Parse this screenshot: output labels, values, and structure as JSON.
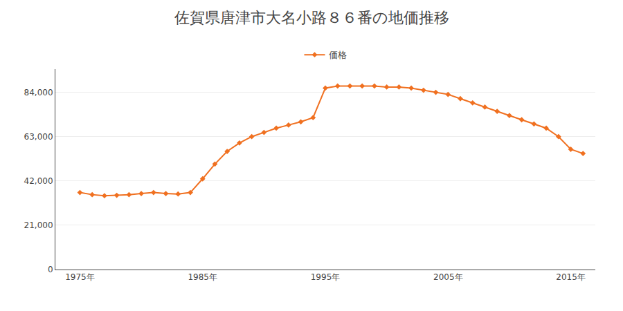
{
  "chart_data": {
    "type": "line",
    "title": "佐賀県唐津市大名小路８６番の地価推移",
    "x": [
      1975,
      1976,
      1977,
      1978,
      1979,
      1980,
      1981,
      1982,
      1983,
      1984,
      1985,
      1986,
      1987,
      1988,
      1989,
      1990,
      1991,
      1992,
      1993,
      1994,
      1995,
      1996,
      1997,
      1998,
      1999,
      2000,
      2001,
      2002,
      2003,
      2004,
      2005,
      2006,
      2007,
      2008,
      2009,
      2010,
      2011,
      2012,
      2013,
      2014,
      2015,
      2016
    ],
    "series": [
      {
        "name": "価格",
        "color": "#f07020",
        "marker": "diamond",
        "line_style": "solid",
        "values": [
          36500,
          35500,
          35000,
          35200,
          35500,
          36000,
          36500,
          36000,
          35800,
          36500,
          43000,
          50000,
          56000,
          60000,
          63000,
          65000,
          67000,
          68500,
          70000,
          72000,
          86000,
          87000,
          87000,
          87000,
          87000,
          86500,
          86500,
          86000,
          85000,
          84000,
          83000,
          81000,
          79000,
          77000,
          75000,
          73000,
          71000,
          69000,
          67000,
          63000,
          57000,
          55000
        ]
      }
    ],
    "xlim": [
      1973,
      2017
    ],
    "xticks": [
      {
        "value": 1975,
        "label": "1975年"
      },
      {
        "value": 1985,
        "label": "1985年"
      },
      {
        "value": 1995,
        "label": "1995年"
      },
      {
        "value": 2005,
        "label": "2005年"
      },
      {
        "value": 2015,
        "label": "2015年"
      }
    ],
    "ylim": [
      0,
      95000
    ],
    "yticks": [
      0,
      {
        "value": 21000,
        "label": "21,000"
      },
      {
        "value": 42000,
        "label": "42,000"
      },
      {
        "value": 63000,
        "label": "63,000"
      },
      {
        "value": 84000,
        "label": "84,000"
      }
    ],
    "grid": "y",
    "legend": "top"
  }
}
